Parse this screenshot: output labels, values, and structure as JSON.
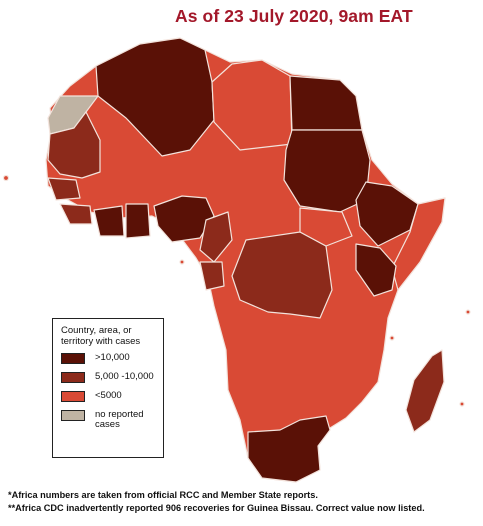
{
  "title": "As of 23 July 2020, 9am EAT",
  "legend": {
    "title": "Country, area, or territory with cases",
    "items": [
      {
        "label": ">10,000",
        "color": "#5a1106"
      },
      {
        "label": "5,000 -10,000",
        "color": "#8c2a1b"
      },
      {
        "label": "<5000",
        "color": "#d94a35"
      },
      {
        "label": "no reported cases",
        "color": "#bfb3a3"
      }
    ]
  },
  "footnotes": [
    "*Africa numbers are taken from official RCC and Member State reports.",
    "**Africa CDC inadvertently reported 906 recoveries for Guinea Bissau. Correct value now listed."
  ],
  "colors": {
    "high": "#5a1106",
    "medium": "#8c2a1b",
    "low": "#d94a35",
    "none": "#bfb3a3",
    "border": "#f3e3dc",
    "title": "#a3182a"
  }
}
